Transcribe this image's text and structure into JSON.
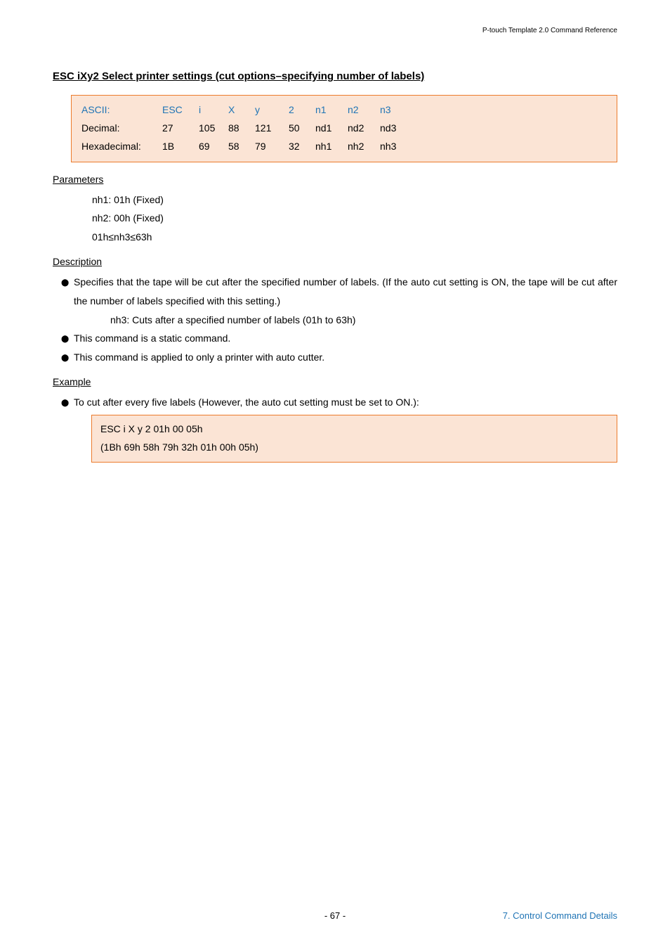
{
  "header": {
    "doc_title": "P-touch Template 2.0 Command Reference"
  },
  "title": "ESC iXy2    Select printer settings (cut options–specifying number of labels)",
  "codetable": {
    "rows": [
      {
        "label": "ASCII:",
        "blue": true,
        "c1": "ESC",
        "c2": "i",
        "c3": "X",
        "c4": "y",
        "c5": "2",
        "c6": "n1",
        "c7": "n2",
        "c8": "n3"
      },
      {
        "label": "Decimal:",
        "blue": false,
        "c1": "27",
        "c2": "105",
        "c3": "88",
        "c4": "121",
        "c5": "50",
        "c6": "nd1",
        "c7": "nd2",
        "c8": "nd3"
      },
      {
        "label": "Hexadecimal:",
        "blue": false,
        "c1": "1B",
        "c2": "69",
        "c3": "58",
        "c4": "79",
        "c5": "32",
        "c6": "nh1",
        "c7": "nh2",
        "c8": "nh3"
      }
    ]
  },
  "parameters": {
    "heading": "Parameters",
    "lines": [
      "nh1: 01h (Fixed)",
      "nh2: 00h (Fixed)",
      "01h≤nh3≤63h"
    ]
  },
  "description": {
    "heading": "Description",
    "bullets": [
      {
        "text": "Specifies that the tape will be cut after the specified number of labels. (If the auto cut setting is ON, the tape will be cut after the number of labels specified with this setting.)",
        "sub": "nh3:  Cuts after a specified number of labels (01h to 63h)"
      },
      {
        "text": "This command is a static command."
      },
      {
        "text": "This command is applied to only a printer with auto cutter."
      }
    ]
  },
  "example": {
    "heading": "Example",
    "bullet": "To cut after every five labels (However, the auto cut setting must be set to ON.):",
    "box": [
      "ESC i X y 2 01h 00 05h",
      "(1Bh 69h 58h 79h 32h 01h 00h 05h)"
    ]
  },
  "footer": {
    "page": "- 67 -",
    "section": "7. Control Command Details"
  }
}
